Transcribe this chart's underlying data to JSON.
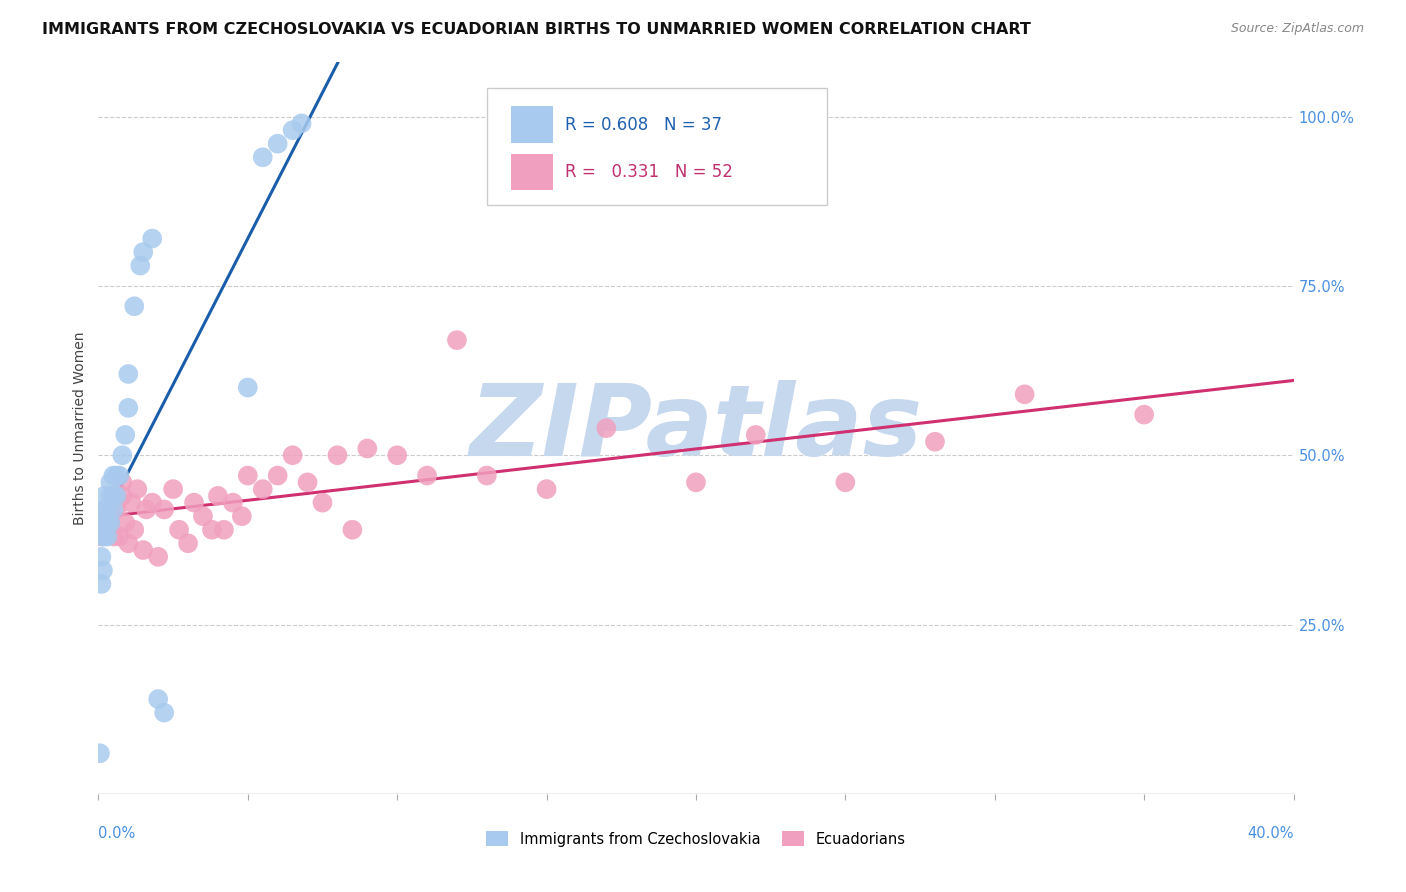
{
  "title": "IMMIGRANTS FROM CZECHOSLOVAKIA VS ECUADORIAN BIRTHS TO UNMARRIED WOMEN CORRELATION CHART",
  "source": "Source: ZipAtlas.com",
  "ylabel": "Births to Unmarried Women",
  "yticks_right": [
    "25.0%",
    "50.0%",
    "75.0%",
    "100.0%"
  ],
  "yticks_right_vals": [
    0.25,
    0.5,
    0.75,
    1.0
  ],
  "legend_blue_R": "0.608",
  "legend_blue_N": "37",
  "legend_pink_R": "0.331",
  "legend_pink_N": "52",
  "blue_color": "#A8CAEE",
  "blue_line_color": "#1A5DAA",
  "pink_color": "#F0A0BE",
  "pink_line_color": "#D03070",
  "xmin": 0.0,
  "xmax": 0.4,
  "ymin": 0.0,
  "ymax": 1.08,
  "blue_x": [
    0.0005,
    0.001,
    0.001,
    0.001,
    0.0015,
    0.0015,
    0.002,
    0.002,
    0.002,
    0.002,
    0.003,
    0.003,
    0.003,
    0.004,
    0.004,
    0.004,
    0.005,
    0.005,
    0.005,
    0.006,
    0.006,
    0.007,
    0.008,
    0.009,
    0.01,
    0.01,
    0.012,
    0.014,
    0.015,
    0.018,
    0.02,
    0.022,
    0.05,
    0.055,
    0.06,
    0.065,
    0.068
  ],
  "blue_y": [
    0.06,
    0.31,
    0.35,
    0.4,
    0.33,
    0.38,
    0.38,
    0.4,
    0.42,
    0.44,
    0.38,
    0.4,
    0.42,
    0.4,
    0.44,
    0.46,
    0.42,
    0.44,
    0.47,
    0.44,
    0.47,
    0.47,
    0.5,
    0.53,
    0.57,
    0.62,
    0.72,
    0.78,
    0.8,
    0.82,
    0.14,
    0.12,
    0.6,
    0.94,
    0.96,
    0.98,
    0.99
  ],
  "pink_x": [
    0.001,
    0.002,
    0.003,
    0.003,
    0.004,
    0.005,
    0.005,
    0.006,
    0.007,
    0.008,
    0.008,
    0.009,
    0.01,
    0.011,
    0.012,
    0.013,
    0.015,
    0.016,
    0.018,
    0.02,
    0.022,
    0.025,
    0.027,
    0.03,
    0.032,
    0.035,
    0.038,
    0.04,
    0.042,
    0.045,
    0.048,
    0.05,
    0.055,
    0.06,
    0.065,
    0.07,
    0.075,
    0.08,
    0.085,
    0.09,
    0.1,
    0.11,
    0.12,
    0.13,
    0.15,
    0.17,
    0.2,
    0.22,
    0.25,
    0.28,
    0.31,
    0.35
  ],
  "pink_y": [
    0.38,
    0.4,
    0.39,
    0.42,
    0.4,
    0.44,
    0.38,
    0.42,
    0.38,
    0.44,
    0.46,
    0.4,
    0.37,
    0.43,
    0.39,
    0.45,
    0.36,
    0.42,
    0.43,
    0.35,
    0.42,
    0.45,
    0.39,
    0.37,
    0.43,
    0.41,
    0.39,
    0.44,
    0.39,
    0.43,
    0.41,
    0.47,
    0.45,
    0.47,
    0.5,
    0.46,
    0.43,
    0.5,
    0.39,
    0.51,
    0.5,
    0.47,
    0.67,
    0.47,
    0.45,
    0.54,
    0.46,
    0.53,
    0.46,
    0.52,
    0.59,
    0.56
  ]
}
